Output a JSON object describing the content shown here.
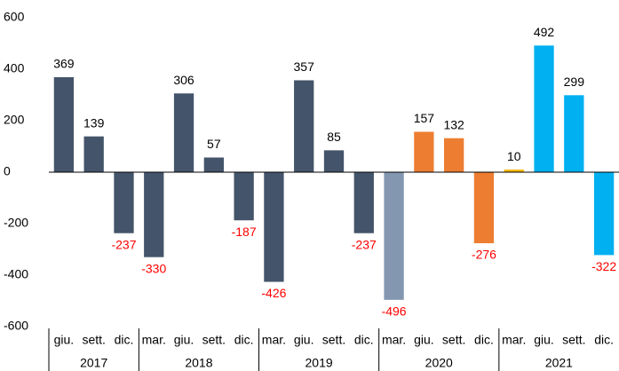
{
  "chart_data": {
    "type": "bar",
    "categories": [
      "giu.",
      "sett.",
      "dic.",
      "mar.",
      "giu.",
      "sett.",
      "dic.",
      "mar.",
      "giu.",
      "sett.",
      "dic.",
      "mar.",
      "giu.",
      "sett.",
      "dic.",
      "mar.",
      "giu.",
      "sett.",
      "dic."
    ],
    "values": [
      369,
      139,
      -237,
      -330,
      306,
      57,
      -187,
      -426,
      357,
      85,
      -237,
      -496,
      157,
      132,
      -276,
      10,
      492,
      299,
      -322
    ],
    "colors": [
      "#44546a",
      "#44546a",
      "#44546a",
      "#44546a",
      "#44546a",
      "#44546a",
      "#44546a",
      "#44546a",
      "#44546a",
      "#44546a",
      "#44546a",
      "#8497b0",
      "#ed7d31",
      "#ed7d31",
      "#ed7d31",
      "#f2b600",
      "#00b0f0",
      "#00b0f0",
      "#00b0f0"
    ],
    "groups": [
      {
        "label": "2017",
        "size": 3
      },
      {
        "label": "2018",
        "size": 4
      },
      {
        "label": "2019",
        "size": 4
      },
      {
        "label": "2020",
        "size": 4
      },
      {
        "label": "2021",
        "size": 4
      }
    ],
    "negative_label_color": "#ff0000",
    "ylim": [
      -600,
      600
    ],
    "yticks": [
      600,
      400,
      200,
      0,
      -200,
      -400,
      -600
    ],
    "grid": false
  }
}
